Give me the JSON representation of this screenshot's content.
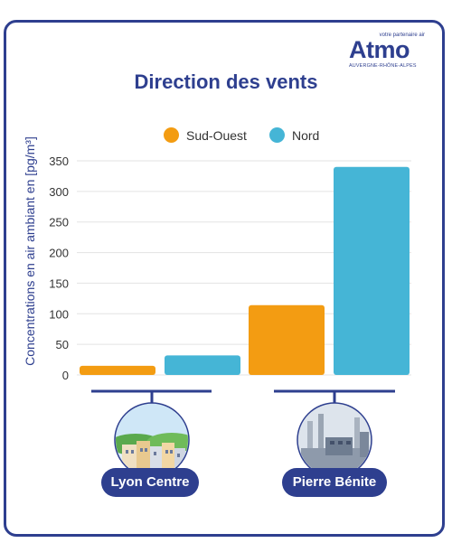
{
  "logo": {
    "tagline": "votre partenaire air",
    "name": "Atmo",
    "region": "AUVERGNE-RHÔNE-ALPES"
  },
  "title": "Direction des vents",
  "ylabel": "Concentrations en air ambiant en [pg/m³]",
  "stations": [
    "Lyon Centre",
    "Pierre Bénite"
  ],
  "colors": {
    "frame": "#2e3f8f",
    "sud_ouest": "#f39c12",
    "nord": "#45b5d6",
    "grid": "#e3e3e3"
  },
  "chart_data": {
    "type": "bar",
    "title": "Direction des vents",
    "xlabel": "",
    "ylabel": "Concentrations en air ambiant en [pg/m³]",
    "categories": [
      "Lyon Centre",
      "Pierre Bénite"
    ],
    "series": [
      {
        "name": "Sud-Ouest",
        "values": [
          15,
          114
        ]
      },
      {
        "name": "Nord",
        "values": [
          32,
          340
        ]
      }
    ],
    "ylim": [
      0,
      350
    ],
    "yticks": [
      0,
      50,
      100,
      150,
      200,
      250,
      300,
      350
    ],
    "grid": true,
    "legend": "top-center"
  }
}
